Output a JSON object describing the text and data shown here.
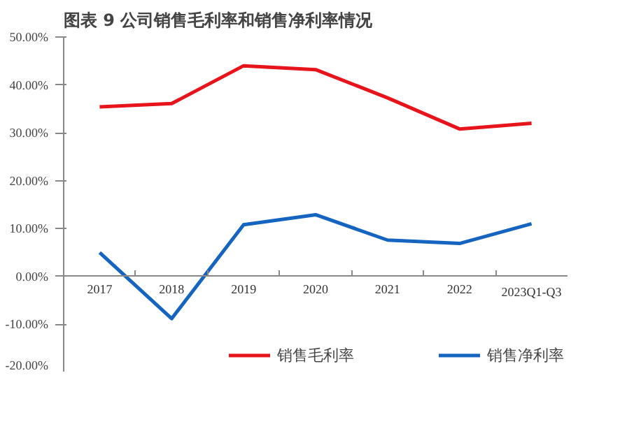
{
  "chart_data": {
    "type": "line",
    "title": "图表 9 公司销售毛利率和销售净利率情况",
    "categories": [
      "2017",
      "2018",
      "2019",
      "2020",
      "2021",
      "2022",
      "2023Q1-Q3"
    ],
    "series": [
      {
        "name": "销售毛利率",
        "color": "#e8141c",
        "values": [
          35.4,
          36.1,
          44.0,
          43.2,
          37.3,
          30.8,
          32.0
        ]
      },
      {
        "name": "销售净利率",
        "color": "#1565c0",
        "values": [
          5.0,
          -8.8,
          10.8,
          12.9,
          7.6,
          6.9,
          11.0
        ]
      }
    ],
    "ylim": [
      -20,
      50
    ],
    "yticks": [
      {
        "value": -20,
        "label": "-20.00%"
      },
      {
        "value": -10,
        "label": "-10.00%"
      },
      {
        "value": 0,
        "label": "0.00%"
      },
      {
        "value": 10,
        "label": "10.00%"
      },
      {
        "value": 20,
        "label": "20.00%"
      },
      {
        "value": 30,
        "label": "30.00%"
      },
      {
        "value": 40,
        "label": "40.00%"
      },
      {
        "value": 50,
        "label": "50.00%"
      }
    ],
    "grid": false,
    "legend": "bottom",
    "marker": "none",
    "line_style": "solid"
  }
}
